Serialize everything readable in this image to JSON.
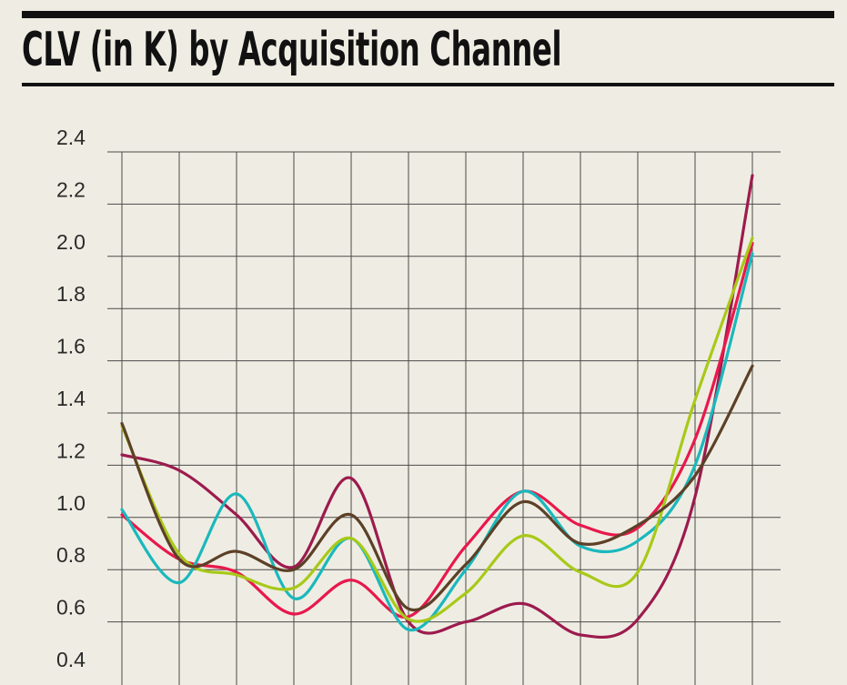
{
  "header": {
    "title": "CLV (in K) by Acquisition Channel"
  },
  "chart_data": {
    "type": "line",
    "title": "CLV (in K) by Acquisition Channel",
    "xlabel": "",
    "ylabel": "",
    "ylim": [
      0.4,
      2.4
    ],
    "yticks": [
      0.4,
      0.6,
      0.8,
      1.0,
      1.2,
      1.4,
      1.6,
      1.8,
      2.0,
      2.2,
      2.4
    ],
    "ytick_labels": [
      "0.4",
      "0.6",
      "0.8",
      "1.0",
      "1.2",
      "1.4",
      "1.6",
      "1.8",
      "2.0",
      "2.2",
      "2.4"
    ],
    "x": [
      1,
      2,
      3,
      4,
      5,
      6,
      7,
      8,
      9,
      10,
      11,
      12
    ],
    "grid": true,
    "legend": "none",
    "series": [
      {
        "color": "#9c1b4e",
        "values": [
          1.24,
          1.18,
          1.01,
          0.81,
          1.15,
          0.6,
          0.6,
          0.67,
          0.55,
          0.61,
          1.08,
          2.31
        ]
      },
      {
        "color": "#e8184d",
        "values": [
          1.01,
          0.84,
          0.79,
          0.63,
          0.76,
          0.62,
          0.89,
          1.1,
          0.97,
          0.96,
          1.3,
          2.05
        ]
      },
      {
        "color": "#1ab8bd",
        "values": [
          1.03,
          0.75,
          1.09,
          0.69,
          0.92,
          0.57,
          0.8,
          1.1,
          0.89,
          0.91,
          1.2,
          2.01
        ]
      },
      {
        "color": "#a8c918",
        "values": [
          1.35,
          0.86,
          0.78,
          0.73,
          0.92,
          0.61,
          0.71,
          0.93,
          0.79,
          0.79,
          1.45,
          2.07
        ]
      },
      {
        "color": "#5c4027",
        "values": [
          1.36,
          0.84,
          0.87,
          0.8,
          1.01,
          0.65,
          0.82,
          1.06,
          0.9,
          0.97,
          1.16,
          1.58
        ]
      }
    ]
  }
}
